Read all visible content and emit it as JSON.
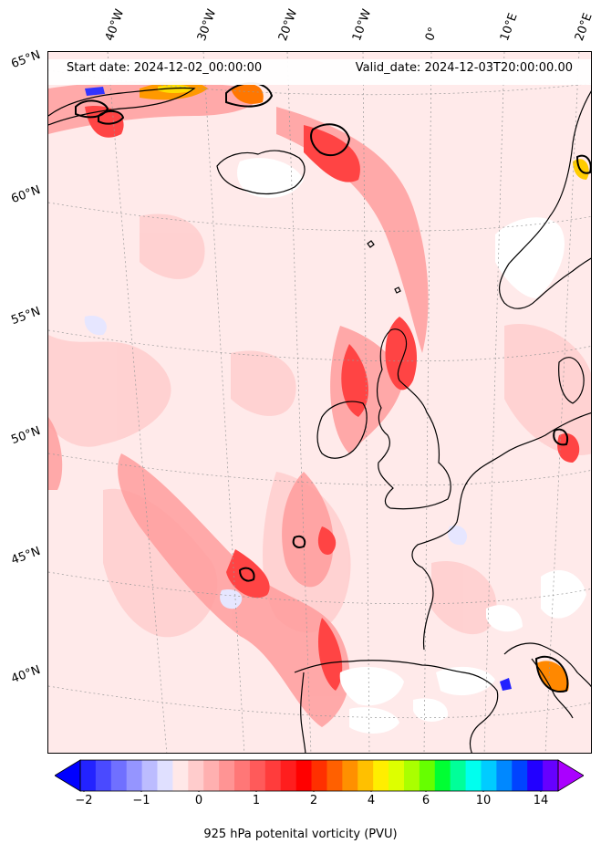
{
  "map": {
    "start_date": "Start date: 2024-12-02_00:00:00",
    "valid_date": "Valid_date: 2024-12-03T20:00:00.00"
  },
  "longitude_labels": [
    "40°W",
    "30°W",
    "20°W",
    "10°W",
    "0°",
    "10°E",
    "20°E"
  ],
  "latitude_labels": [
    "65°N",
    "60°N",
    "55°N",
    "50°N",
    "45°N",
    "40°N"
  ],
  "colorbar": {
    "title": "925 hPa potenital vorticity (PVU)",
    "tick_labels": [
      "−2",
      "−1",
      "0",
      "1",
      "2",
      "4",
      "6",
      "10",
      "14"
    ],
    "colors": [
      "#0000ff",
      "#2323ff",
      "#4a4aff",
      "#7070ff",
      "#9595ff",
      "#bcbcff",
      "#e0e0ff",
      "#ffe8e8",
      "#ffcccc",
      "#ffb0b0",
      "#ff9494",
      "#ff7777",
      "#ff5a5a",
      "#ff3c3c",
      "#ff1e1e",
      "#ff0000",
      "#ff3000",
      "#ff6000",
      "#ff9000",
      "#ffc000",
      "#ffee00",
      "#ddff00",
      "#aaff00",
      "#66ff00",
      "#00ff33",
      "#00ff99",
      "#00ffee",
      "#00ccff",
      "#0088ff",
      "#0044ff",
      "#2200ff",
      "#6600ff",
      "#aa00ff"
    ]
  },
  "colors": {
    "background_field": "#ffeaea",
    "land_outline": "#000000",
    "high_pv": "#ff2020",
    "missing": "#ffffff"
  }
}
